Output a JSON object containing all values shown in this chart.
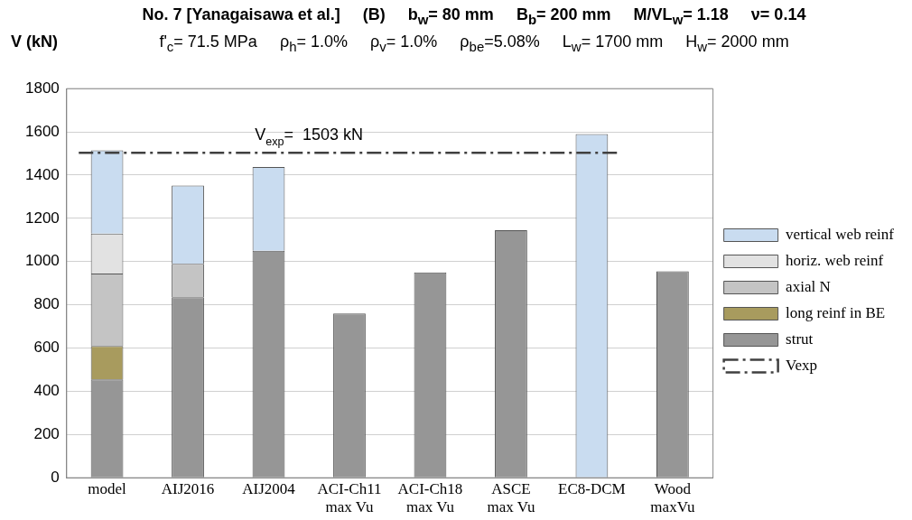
{
  "chart_data": {
    "type": "bar",
    "title": "No. 7 [Yanagaisawa et al.]     (B)     b$_{w}$= 80 mm     B$_{b}$= 200 mm     M/VL$_{w}$= 1.18     ν= 0.14",
    "subtitle": "f'$_{c}$= 71.5 MPa     ρ$_{h}$= 1.0%     ρ$_{v}$= 1.0%     ρ$_{be}$=5.08%     L$_{w}$= 1700 mm     H$_{w}$= 2000 mm",
    "ylabel": "V (kN)",
    "categories": [
      "model",
      "AIJ2016",
      "AIJ2004",
      "ACI-Ch11\nmax Vu",
      "ACI-Ch18\nmax Vu",
      "ASCE\nmax Vu",
      "EC8-DCM",
      "Wood\nmaxVu"
    ],
    "stacked": true,
    "series": [
      {
        "name": "strut",
        "color": "#969696",
        "values": [
          455,
          835,
          1050,
          760,
          950,
          1145,
          null,
          955
        ]
      },
      {
        "name": "long reinf in BE",
        "color": "#a89b5e",
        "values": [
          155,
          null,
          null,
          null,
          null,
          null,
          null,
          null
        ]
      },
      {
        "name": "axial N",
        "color": "#c4c4c4",
        "values": [
          335,
          155,
          null,
          null,
          null,
          null,
          null,
          null
        ]
      },
      {
        "name": "horiz. web reinf",
        "color": "#e2e2e2",
        "values": [
          185,
          null,
          null,
          null,
          null,
          null,
          null,
          null
        ]
      },
      {
        "name": "vertical web reinf",
        "color": "#c9dcf0",
        "values": [
          385,
          362,
          388,
          null,
          null,
          null,
          1590,
          null
        ]
      }
    ],
    "ylim": [
      0,
      1800
    ],
    "yticks": [
      0,
      200,
      400,
      600,
      800,
      1000,
      1200,
      1400,
      1600,
      1800
    ],
    "grid": "y",
    "legend": "right",
    "ref_lines": [
      {
        "axis": "y",
        "value": 1503,
        "label": "Vexp",
        "color": "#404040",
        "line_style": "dashed"
      }
    ],
    "annotations": [
      "V$_{exp}$=  1503 kN"
    ]
  }
}
